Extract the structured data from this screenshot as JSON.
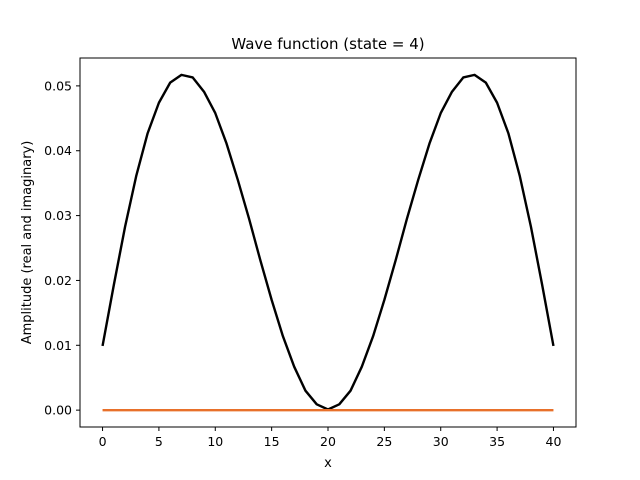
{
  "chart_data": {
    "type": "line",
    "title": "Wave function (state = 4)",
    "xlabel": "x",
    "ylabel": "Amplitude (real and imaginary)",
    "xlim": [
      -2,
      42
    ],
    "ylim": [
      -0.0026,
      0.0543
    ],
    "xticks": [
      0,
      5,
      10,
      15,
      20,
      25,
      30,
      35,
      40
    ],
    "yticks": [
      0.0,
      0.01,
      0.02,
      0.03,
      0.04,
      0.05
    ],
    "ytick_labels": [
      "0.00",
      "0.01",
      "0.02",
      "0.03",
      "0.04",
      "0.05"
    ],
    "grid": false,
    "x": [
      0,
      1,
      2,
      3,
      4,
      5,
      6,
      7,
      8,
      9,
      10,
      11,
      12,
      13,
      14,
      15,
      16,
      17,
      18,
      19,
      20,
      21,
      22,
      23,
      24,
      25,
      26,
      27,
      28,
      29,
      30,
      31,
      32,
      33,
      34,
      35,
      36,
      37,
      38,
      39,
      40
    ],
    "series": [
      {
        "color": "#000000",
        "values": [
          0.0099,
          0.0193,
          0.0283,
          0.0362,
          0.0427,
          0.0474,
          0.0505,
          0.0517,
          0.0513,
          0.0491,
          0.0458,
          0.0411,
          0.0355,
          0.0295,
          0.0231,
          0.017,
          0.0114,
          0.0067,
          0.003,
          0.0009,
          0.0001,
          0.0009,
          0.003,
          0.0067,
          0.0114,
          0.017,
          0.0231,
          0.0295,
          0.0355,
          0.0411,
          0.0458,
          0.0491,
          0.0513,
          0.0517,
          0.0505,
          0.0474,
          0.0427,
          0.0362,
          0.0283,
          0.0193,
          0.0099
        ]
      },
      {
        "color": "#e8702a",
        "values": [
          0,
          0,
          0,
          0,
          0,
          0,
          0,
          0,
          0,
          0,
          0,
          0,
          0,
          0,
          0,
          0,
          0,
          0,
          0,
          0,
          0,
          0,
          0,
          0,
          0,
          0,
          0,
          0,
          0,
          0,
          0,
          0,
          0,
          0,
          0,
          0,
          0,
          0,
          0,
          0,
          0
        ]
      }
    ]
  }
}
